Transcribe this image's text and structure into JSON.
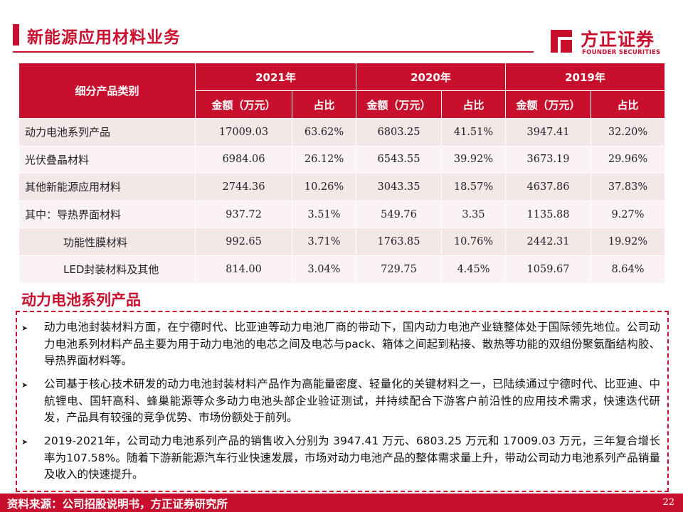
{
  "header": {
    "title": "新能源应用材料业务",
    "logo_cn": "方正证券",
    "logo_en": "FOUNDER SECURITIES"
  },
  "table": {
    "col_category": "细分产品类别",
    "years": [
      "2021年",
      "2020年",
      "2019年"
    ],
    "amount_label": "金额（万元）",
    "share_label": "占比",
    "rows": [
      {
        "category": "动力电池系列产品",
        "values": [
          "17009.03",
          "63.62%",
          "6803.25",
          "41.51%",
          "3947.41",
          "32.20%"
        ]
      },
      {
        "category": "光伏叠晶材料",
        "values": [
          "6984.06",
          "26.12%",
          "6543.55",
          "39.92%",
          "3673.19",
          "29.96%"
        ]
      },
      {
        "category": "其他新能源应用材料",
        "values": [
          "2744.36",
          "10.26%",
          "3043.35",
          "18.57%",
          "4637.86",
          "37.83%"
        ]
      },
      {
        "category": "其中：导热界面材料",
        "values": [
          "937.72",
          "3.51%",
          "549.76",
          "3.35",
          "1135.88",
          "9.27%"
        ]
      },
      {
        "category": "功能性膜材料",
        "values": [
          "992.65",
          "3.71%",
          "1763.85",
          "10.76%",
          "2442.31",
          "19.92%"
        ]
      },
      {
        "category": "LED封装材料及其他",
        "values": [
          "814.00",
          "3.04%",
          "729.75",
          "4.45%",
          "1059.67",
          "8.64%"
        ]
      }
    ]
  },
  "section": {
    "title": "动力电池系列产品",
    "bullet_icon": "arrow-right-icon",
    "bullets": [
      "动力电池封装材料方面，在宁德时代、比亚迪等动力电池厂商的带动下，国内动力电池产业链整体处于国际领先地位。公司动力电池系列材料产品主要为用于动力电池的电芯之间及电芯与pack、箱体之间起到粘接、散热等功能的双组份聚氨酯结构胶、导热界面材料等。",
      "公司基于核心技术研发的动力电池封装材料产品作为高能量密度、轻量化的关键材料之一，已陆续通过宁德时代、比亚迪、中航锂电、国轩高科、蜂巢能源等众多动力电池头部企业验证测试，并持续配合下游客户前沿性的应用技术需求，快速迭代研发，产品具有较强的竞争优势、市场份额处于前列。",
      "2019-2021年，公司动力电池系列产品的销售收入分别为 3947.41 万元、6803.25 万元和 17009.03 万元，三年复合增长率为107.58%。随着下游新能源汽车行业快速发展，市场对动力电池产品的整体需求量上升，带动公司动力电池系列产品销量及收入的快速提升。"
    ]
  },
  "footer": {
    "source": "资料来源：公司招股说明书，方正证券研究所",
    "page_number": "22"
  },
  "colors": {
    "brand_red": "#c8102e",
    "row_shade_a": "#f4e7e8",
    "row_shade_b": "#fbf3f3"
  }
}
